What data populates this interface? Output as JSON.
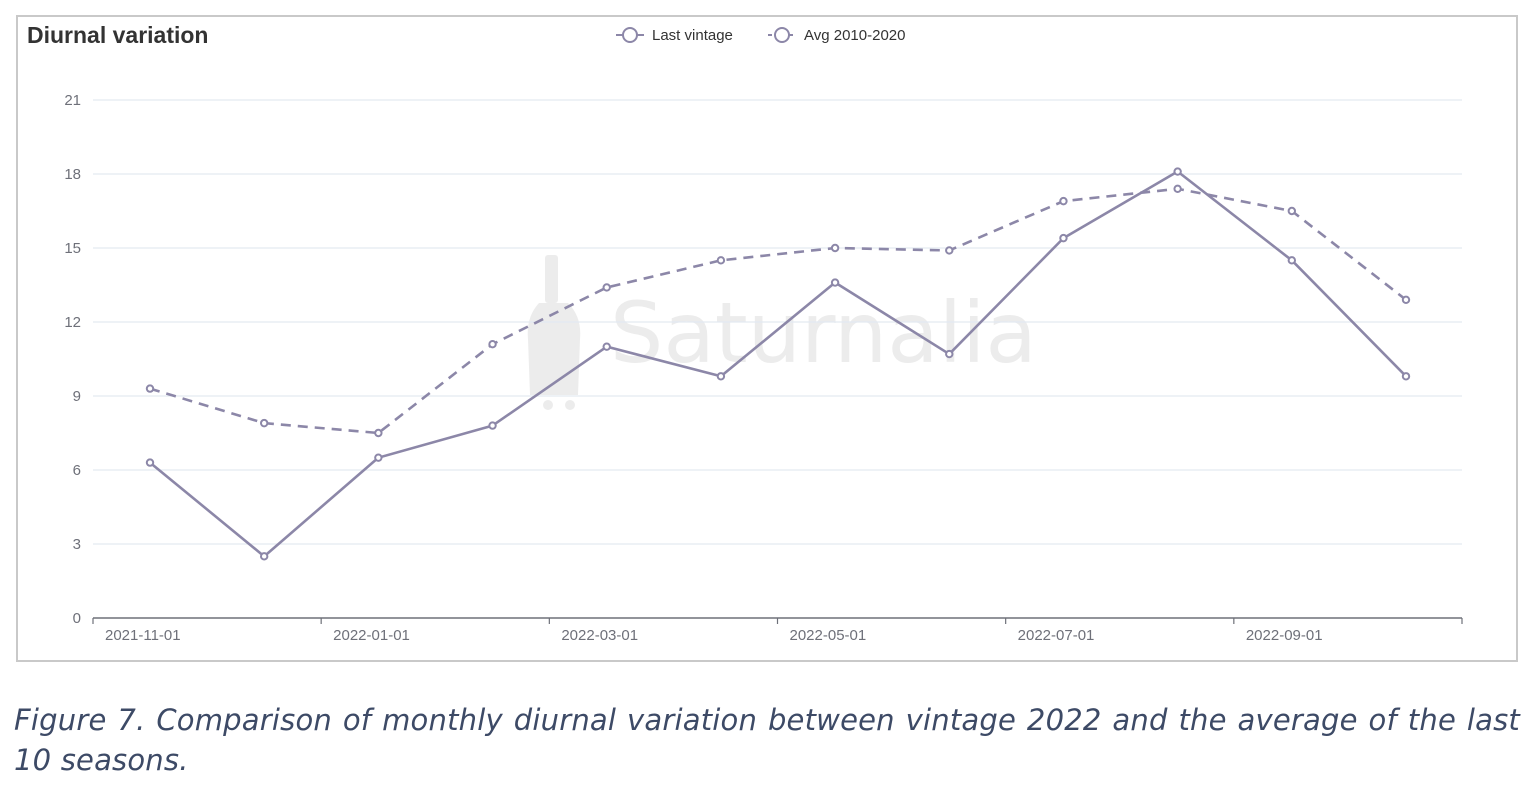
{
  "caption": "Figure 7. Comparison of monthly diurnal variation between vintage 2022 and the average of the last 10 seasons.",
  "watermark": "Saturnalia",
  "colors": {
    "series_line": "#8c87a8",
    "grid": "#e3e9f1",
    "axis": "#6e7079",
    "tick_text": "#6e7079",
    "title_text": "#333333",
    "watermark": "#ececec"
  },
  "chart_data": {
    "type": "line",
    "title": "Diurnal variation",
    "legend_position": "top-center",
    "grid": true,
    "ylim": [
      0,
      21
    ],
    "yticks": [
      0,
      3,
      6,
      9,
      12,
      15,
      18,
      21
    ],
    "x": [
      "2021-11-01",
      "2021-12-01",
      "2022-01-01",
      "2022-02-01",
      "2022-03-01",
      "2022-04-01",
      "2022-05-01",
      "2022-06-01",
      "2022-07-01",
      "2022-08-01",
      "2022-09-01",
      "2022-10-01"
    ],
    "xtick_labels": [
      "2021-11-01",
      "2022-01-01",
      "2022-03-01",
      "2022-05-01",
      "2022-07-01",
      "2022-09-01"
    ],
    "series": [
      {
        "name": "Last vintage",
        "style": "solid",
        "values": [
          6.3,
          2.5,
          6.5,
          7.8,
          11.0,
          9.8,
          13.6,
          10.7,
          15.4,
          18.1,
          14.5,
          9.8
        ]
      },
      {
        "name": "Avg 2010-2020",
        "style": "dashed",
        "values": [
          9.3,
          7.9,
          7.5,
          11.1,
          13.4,
          14.5,
          15.0,
          14.9,
          16.9,
          17.4,
          16.5,
          12.9
        ]
      }
    ]
  }
}
